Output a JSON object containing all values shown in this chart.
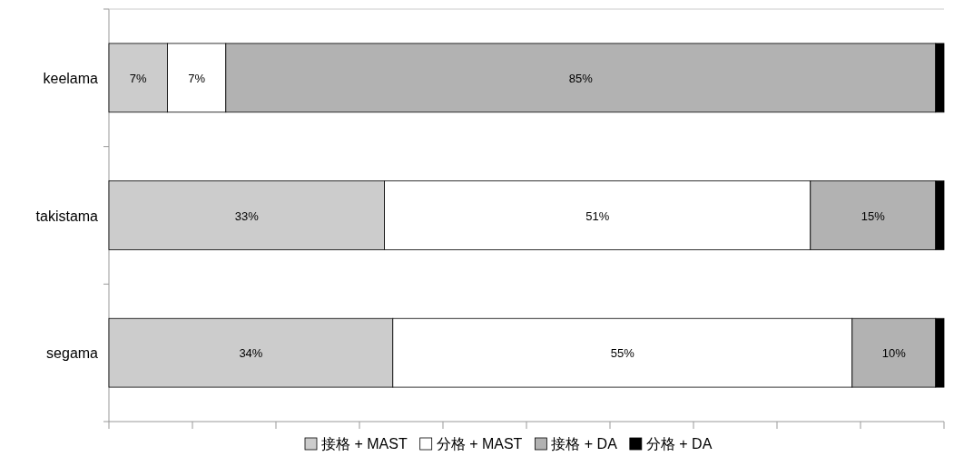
{
  "chart_data": {
    "type": "bar",
    "orientation": "horizontal",
    "stacked": true,
    "categories": [
      "keelama",
      "takistama",
      "segama"
    ],
    "series": [
      {
        "name": "接格 + MAST",
        "color": "#cccccc",
        "values": [
          7,
          33,
          34
        ],
        "value_labels": [
          "7%",
          "33%",
          "34%"
        ]
      },
      {
        "name": "分格 + MAST",
        "color": "#ffffff",
        "values": [
          7,
          51,
          55
        ],
        "value_labels": [
          "7%",
          "51%",
          "55%"
        ]
      },
      {
        "name": "接格 + DA",
        "color": "#b2b2b2",
        "values": [
          85,
          15,
          10
        ],
        "value_labels": [
          "85%",
          "15%",
          "10%"
        ]
      },
      {
        "name": "分格 + DA",
        "color": "#000000",
        "values": [
          1,
          1,
          1
        ],
        "value_labels": [
          null,
          null,
          null
        ]
      }
    ],
    "xlim": [
      0,
      100
    ],
    "xticks": [
      {
        "value": 0,
        "label": null
      },
      {
        "value": 10,
        "label": null
      },
      {
        "value": 20,
        "label": null
      },
      {
        "value": 30,
        "label": null
      },
      {
        "value": 40,
        "label": null
      },
      {
        "value": 50,
        "label": null
      },
      {
        "value": 60,
        "label": null
      },
      {
        "value": 70,
        "label": null
      },
      {
        "value": 80,
        "label": null
      },
      {
        "value": 90,
        "label": null
      },
      {
        "value": 100,
        "label": null
      }
    ],
    "tick_labels": "y",
    "grid": false,
    "legend": "bottom"
  }
}
